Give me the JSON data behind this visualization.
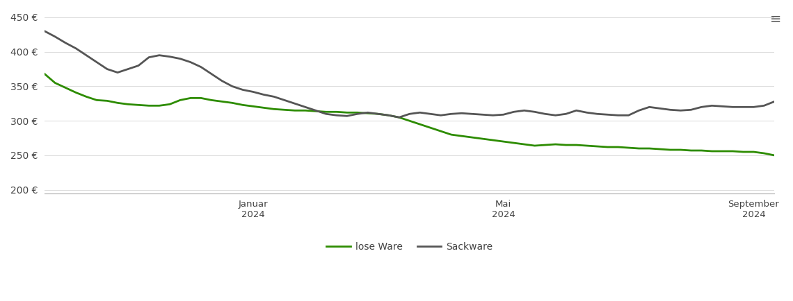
{
  "lose_ware_x": [
    0,
    5,
    10,
    15,
    20,
    25,
    30,
    35,
    40,
    45,
    50,
    55,
    60,
    65,
    70,
    75,
    80,
    85,
    90,
    95,
    100,
    105,
    110,
    115,
    120,
    125,
    130,
    135,
    140,
    145,
    150,
    155,
    160,
    165,
    170,
    175,
    180,
    185,
    190,
    195,
    200,
    205,
    210,
    215,
    220,
    225,
    230,
    235,
    240,
    245,
    250,
    255,
    260,
    265,
    270,
    275,
    280,
    285,
    290,
    295,
    300,
    305,
    310,
    315,
    320,
    325,
    330,
    335,
    340,
    345,
    350
  ],
  "lose_ware_y": [
    368,
    355,
    348,
    341,
    335,
    330,
    329,
    326,
    324,
    323,
    322,
    322,
    324,
    330,
    333,
    333,
    330,
    328,
    326,
    323,
    321,
    319,
    317,
    316,
    315,
    315,
    314,
    313,
    313,
    312,
    312,
    311,
    310,
    308,
    305,
    300,
    295,
    290,
    285,
    280,
    278,
    276,
    274,
    272,
    270,
    268,
    266,
    264,
    265,
    266,
    265,
    265,
    264,
    263,
    262,
    262,
    261,
    260,
    260,
    259,
    258,
    258,
    257,
    257,
    256,
    256,
    256,
    255,
    255,
    253,
    250
  ],
  "sackware_x": [
    0,
    5,
    10,
    15,
    20,
    25,
    30,
    35,
    40,
    45,
    50,
    55,
    60,
    65,
    70,
    75,
    80,
    85,
    90,
    95,
    100,
    105,
    110,
    115,
    120,
    125,
    130,
    135,
    140,
    145,
    150,
    155,
    160,
    165,
    170,
    175,
    180,
    185,
    190,
    195,
    200,
    205,
    210,
    215,
    220,
    225,
    230,
    235,
    240,
    245,
    250,
    255,
    260,
    265,
    270,
    275,
    280,
    285,
    290,
    295,
    300,
    305,
    310,
    315,
    320,
    325,
    330,
    335,
    340,
    345,
    350
  ],
  "sackware_y": [
    430,
    422,
    413,
    405,
    395,
    385,
    375,
    370,
    375,
    380,
    392,
    395,
    393,
    390,
    385,
    378,
    368,
    358,
    350,
    345,
    342,
    338,
    335,
    330,
    325,
    320,
    315,
    310,
    308,
    307,
    310,
    312,
    310,
    308,
    305,
    310,
    312,
    310,
    308,
    310,
    311,
    310,
    309,
    308,
    309,
    313,
    315,
    313,
    310,
    308,
    310,
    315,
    312,
    310,
    309,
    308,
    308,
    315,
    320,
    318,
    316,
    315,
    316,
    320,
    322,
    321,
    320,
    320,
    320,
    322,
    328
  ],
  "lose_ware_color": "#2d8c00",
  "sackware_color": "#555555",
  "ylim": [
    195,
    460
  ],
  "yticks": [
    200,
    250,
    300,
    350,
    400,
    450
  ],
  "xlabel_ticks_x": [
    100,
    220,
    340
  ],
  "xlabel_ticks_labels": [
    "Januar\n2024",
    "Mai\n2024",
    "September\n2024"
  ],
  "background_color": "#ffffff",
  "grid_color": "#dddddd",
  "legend_labels": [
    "lose Ware",
    "Sackware"
  ],
  "line_width": 2.0
}
